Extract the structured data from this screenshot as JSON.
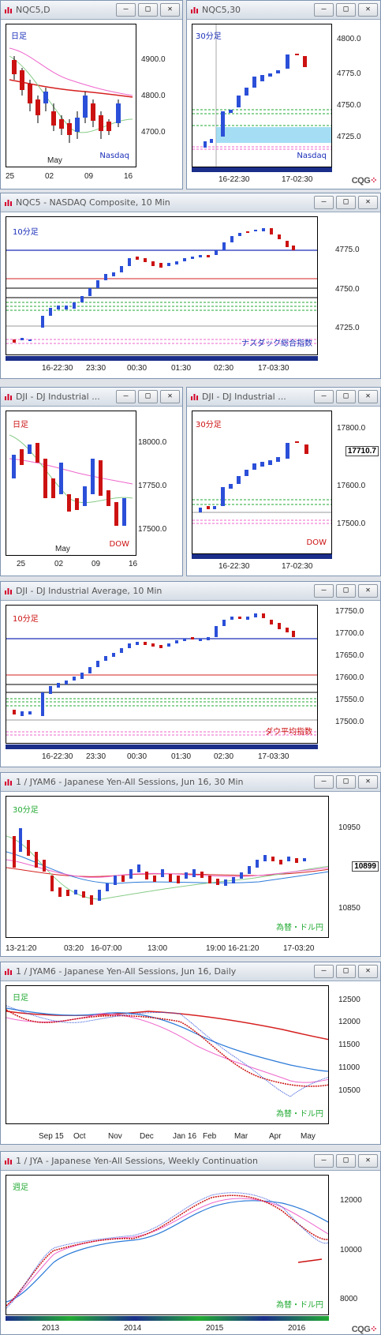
{
  "colors": {
    "up": "#2b4fd8",
    "down": "#cc1111",
    "blue_line": "#1a2eb8",
    "red_line": "#d62020",
    "green_line": "#22aa33",
    "pink_line": "#ee66cc",
    "title_bg": "#dde3ea"
  },
  "icons": {
    "window_icon": "chart-window-icon",
    "minimize": "minimize-icon",
    "maximize": "maximize-icon",
    "close": "close-icon"
  },
  "buttons": {
    "minimize": "—",
    "maximize": "□",
    "close": "✕"
  },
  "windows": [
    {
      "title": "NQC5,D",
      "tag": "日足",
      "tag_color": "#1a2eb8",
      "label": "Nasdaq",
      "label_color": "#1a2eb8",
      "yticks": [
        "4900.0",
        "4800.0",
        "4700.0"
      ],
      "xticks": [
        "25",
        "02",
        "09",
        "16"
      ],
      "xsub": "May"
    },
    {
      "title": "NQC5,30",
      "tag": "30分足",
      "tag_color": "#1a2eb8",
      "label": "Nasdaq",
      "label_color": "#1a2eb8",
      "yticks": [
        "4800.0",
        "4775.0",
        "4750.0",
        "4725.0"
      ],
      "xticks": [
        "16-22:30",
        "17-02:30"
      ],
      "cqg": "CQG"
    },
    {
      "title": "NQC5 - NASDAQ Composite, 10 Min",
      "tag": "10分足",
      "tag_color": "#1a2eb8",
      "label": "ナスダック総合指数",
      "label_color": "#1a2eb8",
      "yticks": [
        "4775.0",
        "4750.0",
        "4725.0"
      ],
      "xticks": [
        "16-22:30",
        "23:30",
        "00:30",
        "01:30",
        "02:30",
        "17-03:30"
      ]
    },
    {
      "title": "DJI - DJ Industrial ...",
      "tag": "日足",
      "tag_color": "#cc1111",
      "label": "DOW",
      "label_color": "#cc1111",
      "yticks": [
        "18000.0",
        "17750.0",
        "17500.0"
      ],
      "xticks": [
        "25",
        "02",
        "09",
        "16"
      ],
      "xsub": "May"
    },
    {
      "title": "DJI - DJ Industrial ...",
      "tag": "30分足",
      "tag_color": "#cc1111",
      "label": "DOW",
      "label_color": "#cc1111",
      "yticks": [
        "17800.0",
        "17600.0",
        "17500.0"
      ],
      "price": "17710.7",
      "xticks": [
        "16-22:30",
        "17-02:30"
      ]
    },
    {
      "title": "DJI - DJ Industrial Average, 10 Min",
      "tag": "10分足",
      "tag_color": "#cc1111",
      "label": "ダウ平均指数",
      "label_color": "#cc1111",
      "yticks": [
        "17750.0",
        "17700.0",
        "17650.0",
        "17600.0",
        "17550.0",
        "17500.0"
      ],
      "xticks": [
        "16-22:30",
        "23:30",
        "00:30",
        "01:30",
        "02:30",
        "17-03:30"
      ]
    },
    {
      "title": "1 / JYAM6 - Japanese Yen-All Sessions, Jun 16, 30 Min",
      "tag": "30分足",
      "tag_color": "#22aa33",
      "label": "為替・ドル円",
      "label_color": "#22aa33",
      "yticks": [
        "10950",
        "10899",
        "10850"
      ],
      "price": "10899",
      "xticks": [
        "13-21:20",
        "03:20",
        "16-07:00",
        "13:00",
        "19:00",
        "16-21:20",
        "17-03:20"
      ]
    },
    {
      "title": "1 / JYAM6 - Japanese Yen-All Sessions, Jun 16, Daily",
      "tag": "日足",
      "tag_color": "#22aa33",
      "label": "為替・ドル円",
      "label_color": "#22aa33",
      "yticks": [
        "12500",
        "12000",
        "11500",
        "11000",
        "10500"
      ],
      "xticks": [
        "Sep 15",
        "Oct",
        "Nov",
        "Dec",
        "Jan 16",
        "Feb",
        "Mar",
        "Apr",
        "May"
      ]
    },
    {
      "title": "1 / JYA - Japanese Yen-All Sessions, Weekly Continuation",
      "tag": "週足",
      "tag_color": "#22aa33",
      "label": "為替・ドル円",
      "label_color": "#22aa33",
      "yticks": [
        "12000",
        "10000",
        "8000"
      ],
      "xticks": [
        "2013",
        "2014",
        "2015",
        "2016"
      ],
      "cqg": "CQG"
    }
  ]
}
